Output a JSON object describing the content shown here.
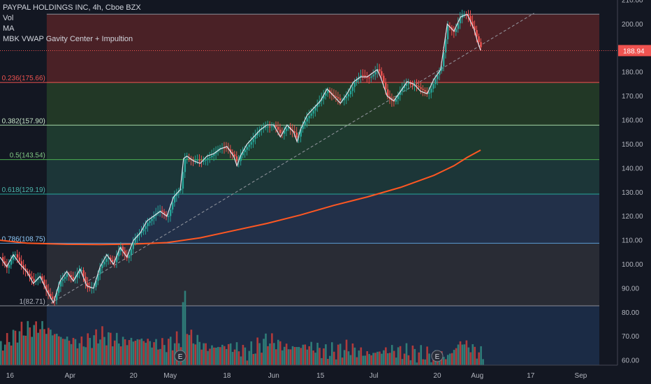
{
  "legend": {
    "symbol": "PAYPAL HOLDINGS INC, 4h, Cboe BZX",
    "indicators": [
      "Vol",
      "MA",
      "MBK VWAP Gavity Center + Impultion"
    ]
  },
  "colors": {
    "background": "#131722",
    "up_candle": "#26a69a",
    "down_candle": "#ef5350",
    "ma_line": "#e0e3eb",
    "vwap_line": "#ff5722",
    "vol_up": "#2f7d78",
    "vol_down": "#b23a3a",
    "trendline": "#9598a1"
  },
  "chart_data": {
    "type": "candlestick",
    "price_axis": {
      "range": [
        58,
        210
      ],
      "ticks": [
        "210.00",
        "200.00",
        "190.00",
        "180.00",
        "170.00",
        "160.00",
        "150.00",
        "140.00",
        "130.00",
        "120.00",
        "110.00",
        "100.00",
        "90.00",
        "80.00",
        "70.00",
        "60.00"
      ],
      "last_price_label": "188.94",
      "last_price": 188.94
    },
    "time_axis": {
      "range_days": [
        0,
        185
      ],
      "ticks": [
        {
          "label": "16",
          "day": 3
        },
        {
          "label": "Apr",
          "day": 21
        },
        {
          "label": "20",
          "day": 40
        },
        {
          "label": "May",
          "day": 51
        },
        {
          "label": "18",
          "day": 68
        },
        {
          "label": "Jun",
          "day": 82
        },
        {
          "label": "15",
          "day": 96
        },
        {
          "label": "Jul",
          "day": 112
        },
        {
          "label": "20",
          "day": 131
        },
        {
          "label": "Aug",
          "day": 143
        },
        {
          "label": "17",
          "day": 159
        },
        {
          "label": "Sep",
          "day": 174
        }
      ]
    },
    "fib_levels": [
      {
        "label": "",
        "price": 204.1,
        "line": "#8a8d96",
        "fill": "#4a2126"
      },
      {
        "label": "0.236(175.66)",
        "price": 175.66,
        "line": "#ef5350",
        "fill": "#4a2126",
        "label_color": "#ef5350"
      },
      {
        "label": "0.382(157.90)",
        "price": 157.9,
        "line": "#a5d6a7",
        "fill": "#223826",
        "label_color": "#c8e6c9"
      },
      {
        "label": "0.5(143.54)",
        "price": 143.54,
        "line": "#4caf50",
        "fill": "#1e3a2f",
        "label_color": "#81c784"
      },
      {
        "label": "0.618(129.19)",
        "price": 129.19,
        "line": "#26a69a",
        "fill": "#1c3638",
        "label_color": "#4db6ac"
      },
      {
        "label": "0.786(108.75)",
        "price": 108.75,
        "line": "#5b9bd5",
        "fill": "#223049",
        "label_color": "#90caf9"
      },
      {
        "label": "1(82.71)",
        "price": 82.71,
        "line": "#8a8d96",
        "fill": "#292c35",
        "label_color": "#b2b5be"
      }
    ],
    "fib_extension_fill": "#1b2b45",
    "close_path": [
      [
        0,
        103
      ],
      [
        2,
        99
      ],
      [
        4,
        104
      ],
      [
        6,
        100
      ],
      [
        8,
        97
      ],
      [
        10,
        92
      ],
      [
        12,
        95
      ],
      [
        14,
        89
      ],
      [
        16,
        84
      ],
      [
        18,
        93
      ],
      [
        20,
        97
      ],
      [
        22,
        93
      ],
      [
        24,
        98
      ],
      [
        26,
        91
      ],
      [
        28,
        90
      ],
      [
        30,
        99
      ],
      [
        32,
        104
      ],
      [
        34,
        100
      ],
      [
        36,
        107
      ],
      [
        38,
        103
      ],
      [
        40,
        110
      ],
      [
        42,
        113
      ],
      [
        44,
        118
      ],
      [
        46,
        120
      ],
      [
        48,
        122
      ],
      [
        50,
        120
      ],
      [
        52,
        128
      ],
      [
        54,
        131
      ],
      [
        55,
        144
      ],
      [
        56,
        145
      ],
      [
        58,
        143
      ],
      [
        60,
        142
      ],
      [
        62,
        145
      ],
      [
        64,
        146
      ],
      [
        66,
        148
      ],
      [
        68,
        149
      ],
      [
        70,
        145
      ],
      [
        71,
        141
      ],
      [
        72,
        145
      ],
      [
        74,
        150
      ],
      [
        76,
        153
      ],
      [
        78,
        156
      ],
      [
        80,
        158
      ],
      [
        82,
        158
      ],
      [
        84,
        153
      ],
      [
        86,
        158
      ],
      [
        88,
        155
      ],
      [
        89,
        151
      ],
      [
        90,
        156
      ],
      [
        92,
        162
      ],
      [
        94,
        165
      ],
      [
        96,
        168
      ],
      [
        98,
        173
      ],
      [
        100,
        170
      ],
      [
        102,
        167
      ],
      [
        104,
        171
      ],
      [
        106,
        176
      ],
      [
        108,
        178
      ],
      [
        110,
        178
      ],
      [
        112,
        180
      ],
      [
        113,
        181
      ],
      [
        114,
        178
      ],
      [
        116,
        170
      ],
      [
        118,
        168
      ],
      [
        120,
        172
      ],
      [
        122,
        176
      ],
      [
        124,
        175
      ],
      [
        126,
        172
      ],
      [
        128,
        171
      ],
      [
        130,
        177
      ],
      [
        132,
        181
      ],
      [
        134,
        200
      ],
      [
        136,
        197
      ],
      [
        138,
        203
      ],
      [
        140,
        204
      ],
      [
        142,
        198
      ],
      [
        143,
        193
      ],
      [
        144,
        189
      ]
    ],
    "ma_path": [
      [
        0,
        110
      ],
      [
        8,
        108.8
      ],
      [
        20,
        108.3
      ],
      [
        30,
        108.2
      ],
      [
        40,
        108.4
      ],
      [
        50,
        109
      ],
      [
        60,
        111
      ],
      [
        70,
        114
      ],
      [
        80,
        117
      ],
      [
        90,
        120.5
      ],
      [
        100,
        124.5
      ],
      [
        110,
        128
      ],
      [
        120,
        132
      ],
      [
        125,
        134.5
      ],
      [
        130,
        137
      ],
      [
        136,
        141
      ],
      [
        140,
        144.5
      ],
      [
        144,
        147.5
      ]
    ],
    "trendline": [
      [
        14,
        82.71
      ],
      [
        160,
        204.5
      ]
    ],
    "volume_bars_path": [
      [
        0,
        67
      ],
      [
        6,
        74
      ],
      [
        12,
        76
      ],
      [
        18,
        71
      ],
      [
        24,
        68
      ],
      [
        30,
        72
      ],
      [
        36,
        69
      ],
      [
        42,
        70
      ],
      [
        48,
        67
      ],
      [
        54,
        70
      ],
      [
        55,
        95
      ],
      [
        56,
        72
      ],
      [
        62,
        66
      ],
      [
        68,
        67
      ],
      [
        74,
        64
      ],
      [
        80,
        70
      ],
      [
        86,
        66
      ],
      [
        92,
        67
      ],
      [
        98,
        64
      ],
      [
        104,
        66
      ],
      [
        110,
        63
      ],
      [
        116,
        65
      ],
      [
        122,
        64
      ],
      [
        128,
        63
      ],
      [
        134,
        62
      ],
      [
        138,
        69
      ],
      [
        144,
        63
      ]
    ],
    "earnings_markers": [
      {
        "label": "E",
        "day": 54
      },
      {
        "label": "E",
        "day": 131
      }
    ]
  }
}
